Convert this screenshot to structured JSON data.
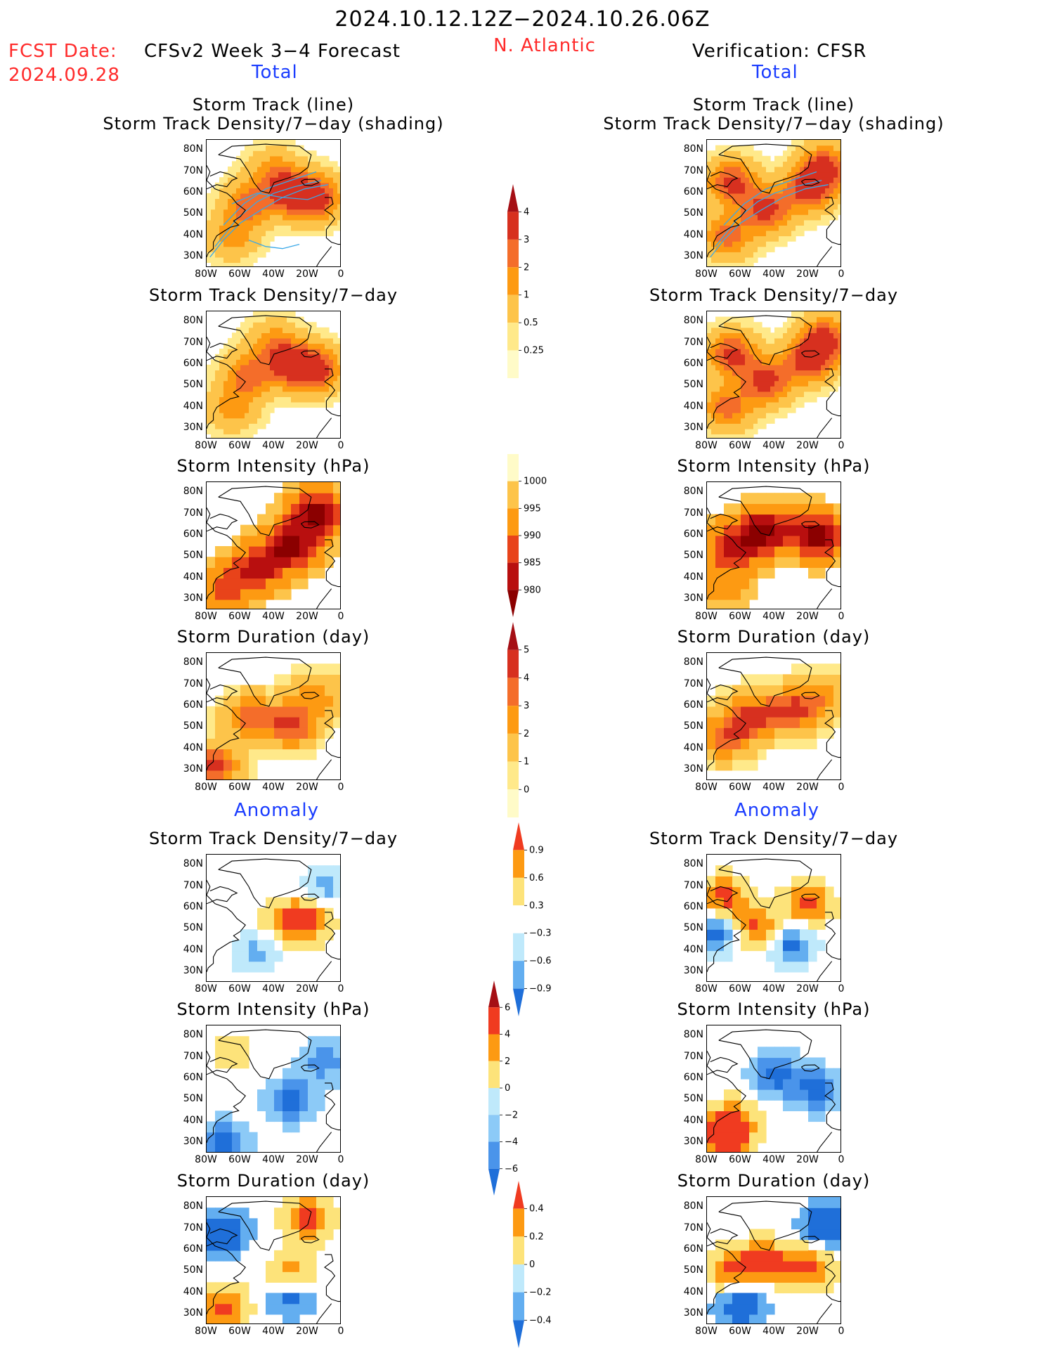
{
  "header": {
    "period": "2024.10.12.12Z−2024.10.26.06Z",
    "fcst_label": "FCST Date:",
    "fcst_date": "2024.09.28",
    "model_title": "CFSv2 Week 3−4 Forecast",
    "region": "N. Atlantic",
    "verif_title": "Verification: CFSR",
    "left_total": "Total",
    "right_total": "Total",
    "left_anomaly": "Anomaly",
    "right_anomaly": "Anomaly"
  },
  "axes": {
    "x_ticks": [
      "80W",
      "60W",
      "40W",
      "20W",
      "0"
    ],
    "y_ticks": [
      "80N",
      "70N",
      "60N",
      "50N",
      "40N",
      "30N"
    ]
  },
  "chart_data": [
    {
      "type": "heatmap",
      "panel": "forecast-track",
      "title": [
        "Storm Track (line)",
        "Storm Track Density/7−day (shading)"
      ],
      "xlim": [
        -80,
        0
      ],
      "ylim": [
        25,
        85
      ],
      "colorbar": "density",
      "hotspots": [
        {
          "lon": -30,
          "lat": 60,
          "level": 4
        },
        {
          "lon": -15,
          "lat": 58,
          "level": 4
        },
        {
          "lon": -55,
          "lat": 55,
          "level": 3
        },
        {
          "lon": -65,
          "lat": 40,
          "level": 2
        },
        {
          "lon": -40,
          "lat": 70,
          "level": 2
        }
      ]
    },
    {
      "type": "heatmap",
      "panel": "verif-track",
      "title": [
        "Storm Track (line)",
        "Storm Track Density/7−day (shading)"
      ],
      "xlim": [
        -80,
        0
      ],
      "ylim": [
        25,
        85
      ],
      "colorbar": "density",
      "hotspots": [
        {
          "lon": -65,
          "lat": 65,
          "level": 4
        },
        {
          "lon": -45,
          "lat": 52,
          "level": 4
        },
        {
          "lon": -20,
          "lat": 62,
          "level": 4
        },
        {
          "lon": -10,
          "lat": 72,
          "level": 4
        },
        {
          "lon": -68,
          "lat": 40,
          "level": 3
        }
      ]
    },
    {
      "type": "heatmap",
      "panel": "forecast-density",
      "title": [
        "Storm Track Density/7−day"
      ],
      "xlim": [
        -80,
        0
      ],
      "ylim": [
        25,
        85
      ],
      "colorbar": "density",
      "hotspots": [
        {
          "lon": -30,
          "lat": 60,
          "level": 4
        },
        {
          "lon": -15,
          "lat": 58,
          "level": 4
        },
        {
          "lon": -55,
          "lat": 55,
          "level": 3
        },
        {
          "lon": -65,
          "lat": 40,
          "level": 2
        },
        {
          "lon": -40,
          "lat": 70,
          "level": 2
        }
      ]
    },
    {
      "type": "heatmap",
      "panel": "verif-density",
      "title": [
        "Storm Track Density/7−day"
      ],
      "xlim": [
        -80,
        0
      ],
      "ylim": [
        25,
        85
      ],
      "colorbar": "density",
      "hotspots": [
        {
          "lon": -65,
          "lat": 65,
          "level": 4
        },
        {
          "lon": -45,
          "lat": 52,
          "level": 4
        },
        {
          "lon": -20,
          "lat": 62,
          "level": 4
        },
        {
          "lon": -10,
          "lat": 72,
          "level": 4
        },
        {
          "lon": -68,
          "lat": 40,
          "level": 3
        }
      ]
    },
    {
      "type": "heatmap",
      "panel": "forecast-intensity",
      "title": [
        "Storm Intensity (hPa)"
      ],
      "xlim": [
        -80,
        0
      ],
      "ylim": [
        25,
        85
      ],
      "colorbar": "intensity",
      "hotspots": [
        {
          "lon": -30,
          "lat": 55,
          "level": 4
        },
        {
          "lon": -15,
          "lat": 70,
          "level": 4
        },
        {
          "lon": -50,
          "lat": 45,
          "level": 3
        },
        {
          "lon": -70,
          "lat": 35,
          "level": 2
        }
      ]
    },
    {
      "type": "heatmap",
      "panel": "verif-intensity",
      "title": [
        "Storm Intensity (hPa)"
      ],
      "xlim": [
        -80,
        0
      ],
      "ylim": [
        25,
        85
      ],
      "colorbar": "intensity",
      "hotspots": [
        {
          "lon": -45,
          "lat": 62,
          "level": 4
        },
        {
          "lon": -15,
          "lat": 60,
          "level": 4
        },
        {
          "lon": -65,
          "lat": 55,
          "level": 3
        },
        {
          "lon": -70,
          "lat": 38,
          "level": 1
        }
      ]
    },
    {
      "type": "heatmap",
      "panel": "forecast-duration",
      "title": [
        "Storm Duration (day)"
      ],
      "xlim": [
        -80,
        0
      ],
      "ylim": [
        25,
        85
      ],
      "colorbar": "duration",
      "hotspots": [
        {
          "lon": -75,
          "lat": 32,
          "level": 4
        },
        {
          "lon": -30,
          "lat": 52,
          "level": 4
        },
        {
          "lon": -55,
          "lat": 55,
          "level": 3
        },
        {
          "lon": -15,
          "lat": 65,
          "level": 2
        }
      ]
    },
    {
      "type": "heatmap",
      "panel": "verif-duration",
      "title": [
        "Storm Duration (day)"
      ],
      "xlim": [
        -80,
        0
      ],
      "ylim": [
        25,
        85
      ],
      "colorbar": "duration",
      "hotspots": [
        {
          "lon": -55,
          "lat": 55,
          "level": 4
        },
        {
          "lon": -30,
          "lat": 58,
          "level": 4
        },
        {
          "lon": -70,
          "lat": 45,
          "level": 3
        },
        {
          "lon": -10,
          "lat": 65,
          "level": 2
        }
      ]
    },
    {
      "type": "heatmap",
      "panel": "forecast-density-anom",
      "title": [
        "Storm Track Density/7−day"
      ],
      "xlim": [
        -80,
        0
      ],
      "ylim": [
        25,
        85
      ],
      "colorbar": "density_anom",
      "hotspots": [
        {
          "lon": -20,
          "lat": 55,
          "level": 3
        },
        {
          "lon": -35,
          "lat": 52,
          "level": 2
        },
        {
          "lon": -50,
          "lat": 40,
          "level": -2
        },
        {
          "lon": -10,
          "lat": 70,
          "level": -2
        }
      ]
    },
    {
      "type": "heatmap",
      "panel": "verif-density-anom",
      "title": [
        "Storm Track Density/7−day"
      ],
      "xlim": [
        -80,
        0
      ],
      "ylim": [
        25,
        85
      ],
      "colorbar": "density_anom",
      "hotspots": [
        {
          "lon": -70,
          "lat": 65,
          "level": 3
        },
        {
          "lon": -20,
          "lat": 62,
          "level": 3
        },
        {
          "lon": -50,
          "lat": 50,
          "level": 3
        },
        {
          "lon": -30,
          "lat": 43,
          "level": -3
        },
        {
          "lon": -75,
          "lat": 48,
          "level": -3
        }
      ]
    },
    {
      "type": "heatmap",
      "panel": "forecast-intensity-anom",
      "title": [
        "Storm Intensity (hPa)"
      ],
      "xlim": [
        -80,
        0
      ],
      "ylim": [
        25,
        85
      ],
      "colorbar": "intensity_anom",
      "hotspots": [
        {
          "lon": -30,
          "lat": 50,
          "level": -3
        },
        {
          "lon": -70,
          "lat": 30,
          "level": -3
        },
        {
          "lon": -65,
          "lat": 72,
          "level": 1
        },
        {
          "lon": -10,
          "lat": 68,
          "level": -2
        }
      ]
    },
    {
      "type": "heatmap",
      "panel": "verif-intensity-anom",
      "title": [
        "Storm Intensity (hPa)"
      ],
      "xlim": [
        -80,
        0
      ],
      "ylim": [
        25,
        85
      ],
      "colorbar": "intensity_anom",
      "hotspots": [
        {
          "lon": -40,
          "lat": 62,
          "level": -3
        },
        {
          "lon": -15,
          "lat": 55,
          "level": -3
        },
        {
          "lon": -65,
          "lat": 40,
          "level": 3
        },
        {
          "lon": -70,
          "lat": 30,
          "level": 3
        }
      ]
    },
    {
      "type": "heatmap",
      "panel": "forecast-duration-anom",
      "title": [
        "Storm Duration (day)"
      ],
      "xlim": [
        -80,
        0
      ],
      "ylim": [
        25,
        85
      ],
      "colorbar": "duration_anom",
      "hotspots": [
        {
          "lon": -30,
          "lat": 47,
          "level": 3
        },
        {
          "lon": -70,
          "lat": 33,
          "level": 3
        },
        {
          "lon": -20,
          "lat": 75,
          "level": 3
        },
        {
          "lon": -70,
          "lat": 68,
          "level": -3
        },
        {
          "lon": -30,
          "lat": 40,
          "level": -3
        }
      ]
    },
    {
      "type": "heatmap",
      "panel": "verif-duration-anom",
      "title": [
        "Storm Duration (day)"
      ],
      "xlim": [
        -80,
        0
      ],
      "ylim": [
        25,
        85
      ],
      "colorbar": "duration_anom",
      "hotspots": [
        {
          "lon": -45,
          "lat": 55,
          "level": 3
        },
        {
          "lon": -20,
          "lat": 52,
          "level": 3
        },
        {
          "lon": -65,
          "lat": 50,
          "level": 3
        },
        {
          "lon": -10,
          "lat": 72,
          "level": -3
        },
        {
          "lon": -60,
          "lat": 35,
          "level": -3
        }
      ]
    }
  ],
  "colorbars": {
    "density": {
      "labels": [
        "4",
        "3",
        "2",
        "1",
        "0.5",
        "0.25"
      ],
      "colors": [
        "#a50f15",
        "#d7301f",
        "#f46d2a",
        "#fd9a12",
        "#fdc44a",
        "#ffe98a",
        "#fffbc8"
      ]
    },
    "intensity": {
      "labels": [
        "1000",
        "995",
        "990",
        "985",
        "980"
      ],
      "colors": [
        "#fffbc8",
        "#fdc44a",
        "#fd9a12",
        "#e8431a",
        "#b80f0f",
        "#8b0000"
      ]
    },
    "duration": {
      "labels": [
        "5",
        "4",
        "3",
        "2",
        "1",
        "0"
      ],
      "colors": [
        "#a50f15",
        "#d7301f",
        "#f46d2a",
        "#fd9a12",
        "#fdc44a",
        "#ffe98a",
        "#fffbc8"
      ]
    },
    "density_anom": {
      "labels": [
        "0.9",
        "0.6",
        "0.3",
        "−0.3",
        "−0.6",
        "−0.9"
      ],
      "colors": [
        "#f03b20",
        "#fd9a12",
        "#fde37a",
        "#ffffff",
        "#bfe9fb",
        "#63aef0",
        "#1f6fd9"
      ]
    },
    "intensity_anom": {
      "labels": [
        "6",
        "4",
        "2",
        "0",
        "−2",
        "−4",
        "−6"
      ],
      "colors": [
        "#a50f15",
        "#f03b20",
        "#fd9a12",
        "#fde37a",
        "#bfe9fb",
        "#8ccaf7",
        "#4a94ea",
        "#1f6fd9"
      ]
    },
    "duration_anom": {
      "labels": [
        "0.4",
        "0.2",
        "0",
        "−0.2",
        "−0.4"
      ],
      "colors": [
        "#f03b20",
        "#fd9a12",
        "#fde37a",
        "#bfe9fb",
        "#63aef0",
        "#1f6fd9"
      ]
    }
  },
  "colors": {
    "land_line": "#000000",
    "track_line": "#3aa8e8",
    "red_text": "#ff2a2a",
    "blue_text": "#1a3cff"
  }
}
